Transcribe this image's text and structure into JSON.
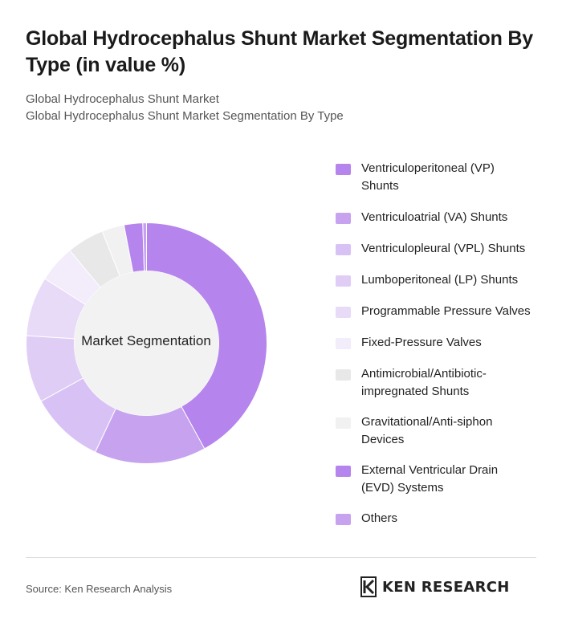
{
  "header": {
    "title": "Global Hydrocephalus Shunt Market Segmentation By Type (in value %)",
    "subtitle_line1": "Global Hydrocephalus Shunt Market",
    "subtitle_line2": "Global Hydrocephalus Shunt Market Segmentation By Type"
  },
  "chart_data": {
    "type": "pie",
    "variant": "donut",
    "center_label": "Market Segmentation",
    "legend_position": "right",
    "categories": [
      "Ventriculoperitoneal (VP) Shunts",
      "Ventriculoatrial (VA) Shunts",
      "Ventriculopleural (VPL) Shunts",
      "Lumboperitoneal (LP) Shunts",
      "Programmable Pressure Valves",
      "Fixed-Pressure Valves",
      "Antimicrobial/Antibiotic-impregnated Shunts",
      "Gravitational/Anti-siphon Devices",
      "External Ventricular Drain (EVD) Systems",
      "Others"
    ],
    "values": [
      42,
      15,
      10,
      9,
      8,
      5,
      5,
      3,
      2.5,
      0.5
    ],
    "colors": [
      "#b584ec",
      "#c6a2ef",
      "#d8c2f5",
      "#dfcdf6",
      "#e8dbf8",
      "#f2ecfb",
      "#e8e8e8",
      "#f1f1f1",
      "#b584ec",
      "#c6a2ef"
    ]
  },
  "legend": {
    "items": [
      {
        "label_line1": "Ventriculoperitoneal (VP)",
        "label_line2": "Shunts",
        "color": "#b584ec"
      },
      {
        "label_line1": "Ventriculoatrial (VA) Shunts",
        "label_line2": "",
        "color": "#c6a2ef"
      },
      {
        "label_line1": "Ventriculopleural (VPL) Shunts",
        "label_line2": "",
        "color": "#d8c2f5"
      },
      {
        "label_line1": "Lumboperitoneal (LP) Shunts",
        "label_line2": "",
        "color": "#dfcdf6"
      },
      {
        "label_line1": "Programmable Pressure Valves",
        "label_line2": "",
        "color": "#e8dbf8"
      },
      {
        "label_line1": "Fixed-Pressure Valves",
        "label_line2": "",
        "color": "#f2ecfb"
      },
      {
        "label_line1": "Antimicrobial/Antibiotic-",
        "label_line2": "impregnated Shunts",
        "color": "#e8e8e8"
      },
      {
        "label_line1": "Gravitational/Anti-siphon",
        "label_line2": "Devices",
        "color": "#f1f1f1"
      },
      {
        "label_line1": "External Ventricular Drain",
        "label_line2": "(EVD) Systems",
        "color": "#b584ec"
      },
      {
        "label_line1": "Others",
        "label_line2": "",
        "color": "#c6a2ef"
      }
    ]
  },
  "footer": {
    "source": "Source: Ken Research Analysis",
    "logo_text": "KEN RESEARCH",
    "logo_icon": "ken-research-logo-icon"
  }
}
